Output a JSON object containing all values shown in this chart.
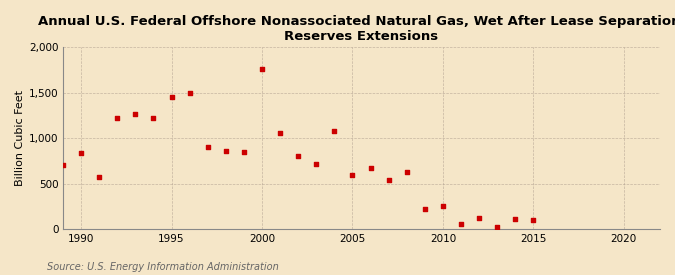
{
  "title": "Annual U.S. Federal Offshore Nonassociated Natural Gas, Wet After Lease Separation,\nReserves Extensions",
  "ylabel": "Billion Cubic Feet",
  "source": "Source: U.S. Energy Information Administration",
  "background_color": "#f5e6c8",
  "plot_bg_color": "#f5e6c8",
  "marker_color": "#cc0000",
  "years": [
    1989,
    1990,
    1991,
    1992,
    1993,
    1994,
    1995,
    1996,
    1997,
    1998,
    1999,
    2000,
    2001,
    2002,
    2003,
    2004,
    2005,
    2006,
    2007,
    2008,
    2009,
    2010,
    2011,
    2012,
    2013,
    2014,
    2015
  ],
  "values": [
    700,
    840,
    570,
    1220,
    1260,
    1220,
    1450,
    1500,
    900,
    860,
    850,
    1760,
    1060,
    800,
    720,
    1080,
    600,
    670,
    540,
    630,
    220,
    255,
    60,
    120,
    30,
    115,
    100
  ],
  "xlim": [
    1989,
    2022
  ],
  "ylim": [
    0,
    2000
  ],
  "yticks": [
    0,
    500,
    1000,
    1500,
    2000
  ],
  "xticks": [
    1990,
    1995,
    2000,
    2005,
    2010,
    2015,
    2020
  ],
  "title_fontsize": 9.5,
  "ylabel_fontsize": 8,
  "tick_fontsize": 7.5,
  "source_fontsize": 7
}
